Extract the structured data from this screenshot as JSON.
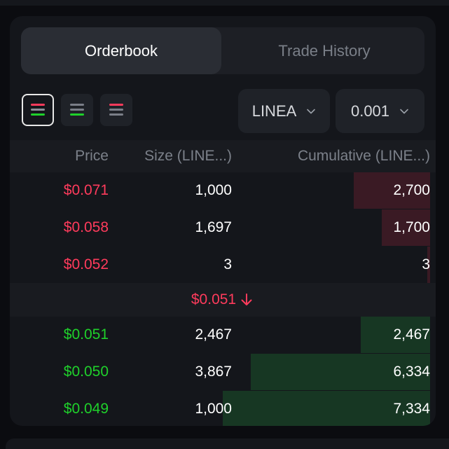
{
  "tabs": [
    {
      "label": "Orderbook",
      "active": true
    },
    {
      "label": "Trade History",
      "active": false
    }
  ],
  "view_buttons": [
    {
      "name": "both",
      "selected": true
    },
    {
      "name": "bids",
      "selected": false
    },
    {
      "name": "asks",
      "selected": false
    }
  ],
  "selectors": {
    "asset": "LINEA",
    "precision": "0.001"
  },
  "columns": {
    "price": "Price",
    "size": "Size (LINE...)",
    "cumulative": "Cumulative (LINE...)"
  },
  "asks": [
    {
      "price": "$0.071",
      "size": "1,000",
      "cumulative": "2,700",
      "depth": 0.368
    },
    {
      "price": "$0.058",
      "size": "1,697",
      "cumulative": "1,700",
      "depth": 0.232
    },
    {
      "price": "$0.052",
      "size": "3",
      "cumulative": "3",
      "depth": 0.0004
    }
  ],
  "mid": {
    "price": "$0.051",
    "direction": "down"
  },
  "bids": [
    {
      "price": "$0.051",
      "size": "2,467",
      "cumulative": "2,467",
      "depth": 0.336
    },
    {
      "price": "$0.050",
      "size": "3,867",
      "cumulative": "6,334",
      "depth": 0.864
    },
    {
      "price": "$0.049",
      "size": "1,000",
      "cumulative": "7,334",
      "depth": 1.0
    }
  ],
  "colors": {
    "ask": "#ff3b5c",
    "bid": "#1fd12b",
    "ask_fill": "#3a1a24",
    "bid_fill": "#173723"
  }
}
